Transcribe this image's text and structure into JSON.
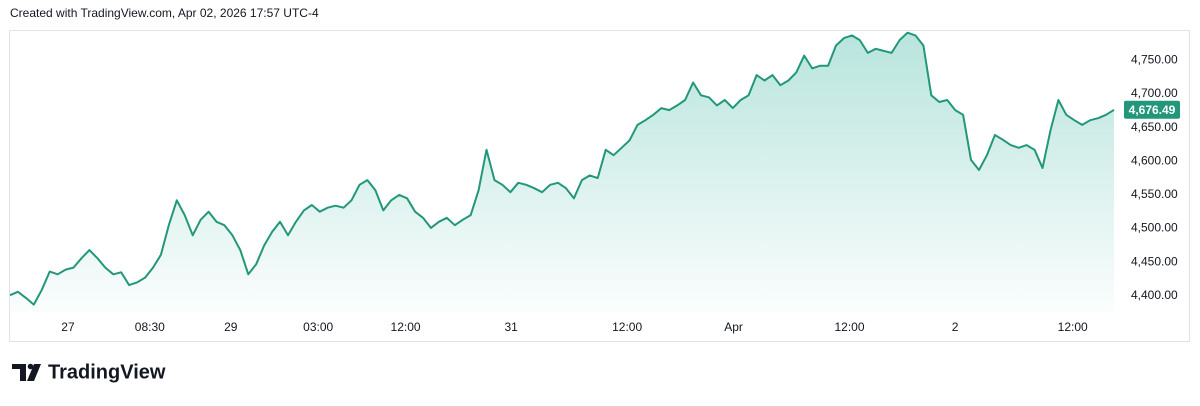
{
  "header": "Created with TradingView.com, Apr 02, 2026 17:57 UTC-4",
  "brand": "TradingView",
  "chart_data": {
    "type": "area",
    "color": "#22977a",
    "values": [
      4401,
      4406,
      4397,
      4387,
      4409,
      4436,
      4432,
      4439,
      4442,
      4456,
      4468,
      4456,
      4442,
      4432,
      4435,
      4416,
      4420,
      4427,
      4442,
      4461,
      4505,
      4542,
      4520,
      4490,
      4513,
      4525,
      4510,
      4505,
      4490,
      4468,
      4432,
      4447,
      4475,
      4495,
      4510,
      4490,
      4510,
      4527,
      4535,
      4525,
      4531,
      4534,
      4531,
      4542,
      4565,
      4572,
      4557,
      4527,
      4542,
      4550,
      4545,
      4525,
      4516,
      4501,
      4510,
      4516,
      4505,
      4513,
      4520,
      4557,
      4617,
      4572,
      4565,
      4554,
      4568,
      4565,
      4560,
      4554,
      4565,
      4568,
      4560,
      4545,
      4572,
      4579,
      4575,
      4617,
      4609,
      4620,
      4631,
      4654,
      4661,
      4669,
      4679,
      4676,
      4683,
      4691,
      4717,
      4698,
      4695,
      4683,
      4691,
      4679,
      4691,
      4698,
      4728,
      4720,
      4728,
      4713,
      4720,
      4732,
      4757,
      4738,
      4742,
      4742,
      4772,
      4783,
      4787,
      4780,
      4761,
      4767,
      4764,
      4761,
      4780,
      4791,
      4787,
      4772,
      4698,
      4688,
      4691,
      4676,
      4669,
      4602,
      4587,
      4609,
      4639,
      4632,
      4624,
      4620,
      4624,
      4617,
      4590,
      4646,
      4691,
      4669,
      4661,
      4654,
      4661,
      4664,
      4669,
      4676.49
    ],
    "last_price": {
      "value": 4676.49,
      "label": "4,676.49"
    },
    "xlim": [
      0,
      139
    ],
    "xticks": [
      {
        "value": 7.3,
        "label": "27"
      },
      {
        "value": 17.6,
        "label": "08:30"
      },
      {
        "value": 27.8,
        "label": "29"
      },
      {
        "value": 38.8,
        "label": "03:00"
      },
      {
        "value": 49.8,
        "label": "12:00"
      },
      {
        "value": 63.1,
        "label": "31"
      },
      {
        "value": 77.7,
        "label": "12:00"
      },
      {
        "value": 91.1,
        "label": "Apr"
      },
      {
        "value": 105.7,
        "label": "12:00"
      },
      {
        "value": 119,
        "label": "2"
      },
      {
        "value": 133.8,
        "label": "12:00"
      }
    ],
    "ylim": [
      4376,
      4795
    ],
    "yticks": [
      {
        "value": 4400,
        "label": "4,400.00"
      },
      {
        "value": 4450,
        "label": "4,450.00"
      },
      {
        "value": 4500,
        "label": "4,500.00"
      },
      {
        "value": 4550,
        "label": "4,550.00"
      },
      {
        "value": 4600,
        "label": "4,600.00"
      },
      {
        "value": 4650,
        "label": "4,650.00"
      },
      {
        "value": 4700,
        "label": "4,700.00"
      },
      {
        "value": 4750,
        "label": "4,750.00"
      }
    ]
  }
}
